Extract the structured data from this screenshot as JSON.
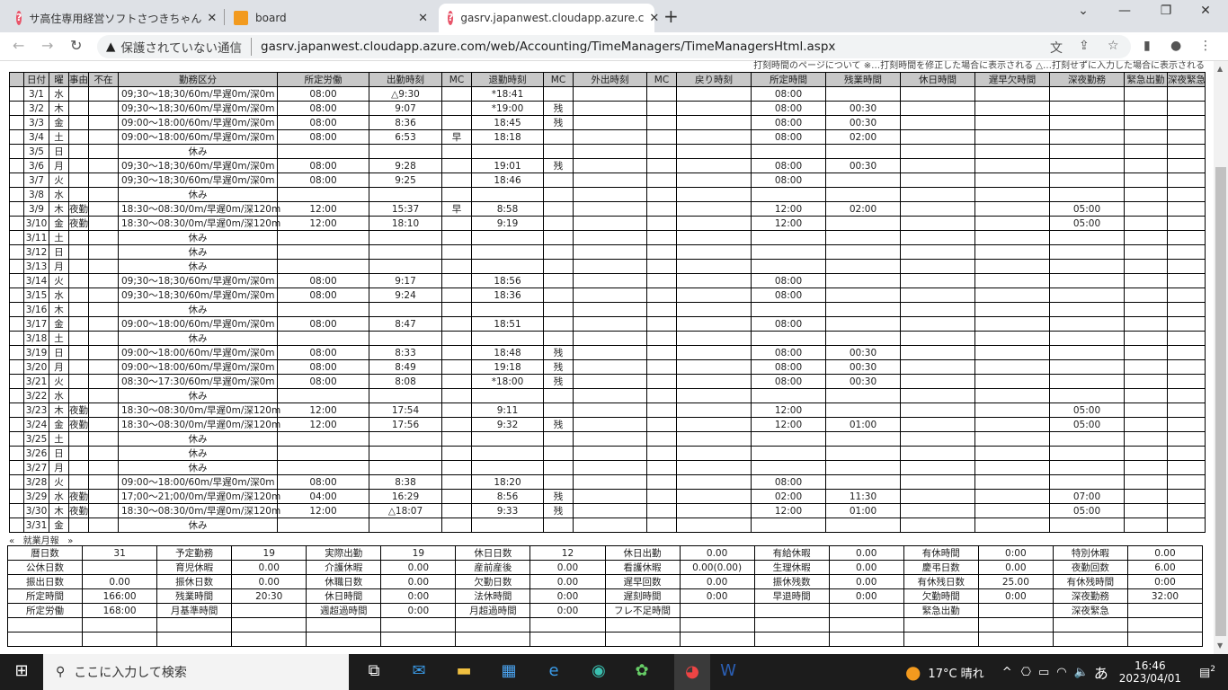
{
  "browser": {
    "tabs": [
      {
        "title": "サ高住専用経営ソフトさつきちゃん",
        "icon": "question-icon"
      },
      {
        "title": "board",
        "icon": "board-icon"
      },
      {
        "title": "gasrv.japanwest.cloudapp.azure.c",
        "icon": "question-icon",
        "active": true
      }
    ],
    "security_label": "保護されていない通信",
    "url": "gasrv.japanwest.cloudapp.azure.com/web/Accounting/TimeManagers/TimeManagersHtml.aspx"
  },
  "page": {
    "note": "打刻時間のページについて ※…打刻時間を修正した場合に表示される △…打刻せずに入力した場合に表示される",
    "headers": [
      "",
      "日付",
      "曜",
      "事由",
      "不在",
      "勤務区分",
      "所定労働",
      "出勤時刻",
      "MC",
      "退勤時刻",
      "MC",
      "外出時刻",
      "MC",
      "戻り時刻",
      "所定時間",
      "残業時間",
      "休日時間",
      "遅早欠時間",
      "深夜勤務",
      "緊急出勤",
      "深夜緊急"
    ],
    "rows": [
      [
        "3/1",
        "水",
        "",
        "",
        "09;30～18;30/60m/早遅0m/深0m",
        "08:00",
        "△9:30",
        "",
        "*18:41",
        "",
        "",
        "",
        "",
        "08:00",
        "",
        "",
        "",
        "",
        "",
        ""
      ],
      [
        "3/2",
        "木",
        "",
        "",
        "09;30～18;30/60m/早遅0m/深0m",
        "08:00",
        "9:07",
        "",
        "*19:00",
        "残",
        "",
        "",
        "",
        "08:00",
        "00:30",
        "",
        "",
        "",
        "",
        ""
      ],
      [
        "3/3",
        "金",
        "",
        "",
        "09:00～18:00/60m/早遅0m/深0m",
        "08:00",
        "8:36",
        "",
        "18:45",
        "残",
        "",
        "",
        "",
        "08:00",
        "00:30",
        "",
        "",
        "",
        "",
        ""
      ],
      [
        "3/4",
        "土",
        "",
        "",
        "09:00～18:00/60m/早遅0m/深0m",
        "08:00",
        "6:53",
        "早",
        "18:18",
        "",
        "",
        "",
        "",
        "08:00",
        "02:00",
        "",
        "",
        "",
        "",
        ""
      ],
      [
        "3/5",
        "日",
        "",
        "",
        "休み",
        "",
        "",
        "",
        "",
        "",
        "",
        "",
        "",
        "",
        "",
        "",
        "",
        "",
        "",
        ""
      ],
      [
        "3/6",
        "月",
        "",
        "",
        "09;30～18;30/60m/早遅0m/深0m",
        "08:00",
        "9:28",
        "",
        "19:01",
        "残",
        "",
        "",
        "",
        "08:00",
        "00:30",
        "",
        "",
        "",
        "",
        ""
      ],
      [
        "3/7",
        "火",
        "",
        "",
        "09;30～18;30/60m/早遅0m/深0m",
        "08:00",
        "9:25",
        "",
        "18:46",
        "",
        "",
        "",
        "",
        "08:00",
        "",
        "",
        "",
        "",
        "",
        ""
      ],
      [
        "3/8",
        "水",
        "",
        "",
        "休み",
        "",
        "",
        "",
        "",
        "",
        "",
        "",
        "",
        "",
        "",
        "",
        "",
        "",
        "",
        ""
      ],
      [
        "3/9",
        "木",
        "夜勤",
        "",
        "18:30～08:30/0m/早遅0m/深120m",
        "12:00",
        "15:37",
        "早",
        "8:58",
        "",
        "",
        "",
        "",
        "12:00",
        "02:00",
        "",
        "",
        "05:00",
        "",
        ""
      ],
      [
        "3/10",
        "金",
        "夜勤",
        "",
        "18:30～08:30/0m/早遅0m/深120m",
        "12:00",
        "18:10",
        "",
        "9:19",
        "",
        "",
        "",
        "",
        "12:00",
        "",
        "",
        "",
        "05:00",
        "",
        ""
      ],
      [
        "3/11",
        "土",
        "",
        "",
        "休み",
        "",
        "",
        "",
        "",
        "",
        "",
        "",
        "",
        "",
        "",
        "",
        "",
        "",
        "",
        ""
      ],
      [
        "3/12",
        "日",
        "",
        "",
        "休み",
        "",
        "",
        "",
        "",
        "",
        "",
        "",
        "",
        "",
        "",
        "",
        "",
        "",
        "",
        ""
      ],
      [
        "3/13",
        "月",
        "",
        "",
        "休み",
        "",
        "",
        "",
        "",
        "",
        "",
        "",
        "",
        "",
        "",
        "",
        "",
        "",
        "",
        ""
      ],
      [
        "3/14",
        "火",
        "",
        "",
        "09;30～18;30/60m/早遅0m/深0m",
        "08:00",
        "9:17",
        "",
        "18:56",
        "",
        "",
        "",
        "",
        "08:00",
        "",
        "",
        "",
        "",
        "",
        ""
      ],
      [
        "3/15",
        "水",
        "",
        "",
        "09;30～18;30/60m/早遅0m/深0m",
        "08:00",
        "9:24",
        "",
        "18:36",
        "",
        "",
        "",
        "",
        "08:00",
        "",
        "",
        "",
        "",
        "",
        ""
      ],
      [
        "3/16",
        "木",
        "",
        "",
        "休み",
        "",
        "",
        "",
        "",
        "",
        "",
        "",
        "",
        "",
        "",
        "",
        "",
        "",
        "",
        ""
      ],
      [
        "3/17",
        "金",
        "",
        "",
        "09:00～18:00/60m/早遅0m/深0m",
        "08:00",
        "8:47",
        "",
        "18:51",
        "",
        "",
        "",
        "",
        "08:00",
        "",
        "",
        "",
        "",
        "",
        ""
      ],
      [
        "3/18",
        "土",
        "",
        "",
        "休み",
        "",
        "",
        "",
        "",
        "",
        "",
        "",
        "",
        "",
        "",
        "",
        "",
        "",
        "",
        ""
      ],
      [
        "3/19",
        "日",
        "",
        "",
        "09:00～18:00/60m/早遅0m/深0m",
        "08:00",
        "8:33",
        "",
        "18:48",
        "残",
        "",
        "",
        "",
        "08:00",
        "00:30",
        "",
        "",
        "",
        "",
        ""
      ],
      [
        "3/20",
        "月",
        "",
        "",
        "09:00～18:00/60m/早遅0m/深0m",
        "08:00",
        "8:49",
        "",
        "19:18",
        "残",
        "",
        "",
        "",
        "08:00",
        "00:30",
        "",
        "",
        "",
        "",
        ""
      ],
      [
        "3/21",
        "火",
        "",
        "",
        "08:30～17:30/60m/早遅0m/深0m",
        "08:00",
        "8:08",
        "",
        "*18:00",
        "残",
        "",
        "",
        "",
        "08:00",
        "00:30",
        "",
        "",
        "",
        "",
        ""
      ],
      [
        "3/22",
        "水",
        "",
        "",
        "休み",
        "",
        "",
        "",
        "",
        "",
        "",
        "",
        "",
        "",
        "",
        "",
        "",
        "",
        "",
        ""
      ],
      [
        "3/23",
        "木",
        "夜勤",
        "",
        "18:30～08:30/0m/早遅0m/深120m",
        "12:00",
        "17:54",
        "",
        "9:11",
        "",
        "",
        "",
        "",
        "12:00",
        "",
        "",
        "",
        "05:00",
        "",
        ""
      ],
      [
        "3/24",
        "金",
        "夜勤",
        "",
        "18:30～08:30/0m/早遅0m/深120m",
        "12:00",
        "17:56",
        "",
        "9:32",
        "残",
        "",
        "",
        "",
        "12:00",
        "01:00",
        "",
        "",
        "05:00",
        "",
        ""
      ],
      [
        "3/25",
        "土",
        "",
        "",
        "休み",
        "",
        "",
        "",
        "",
        "",
        "",
        "",
        "",
        "",
        "",
        "",
        "",
        "",
        "",
        ""
      ],
      [
        "3/26",
        "日",
        "",
        "",
        "休み",
        "",
        "",
        "",
        "",
        "",
        "",
        "",
        "",
        "",
        "",
        "",
        "",
        "",
        "",
        ""
      ],
      [
        "3/27",
        "月",
        "",
        "",
        "休み",
        "",
        "",
        "",
        "",
        "",
        "",
        "",
        "",
        "",
        "",
        "",
        "",
        "",
        "",
        ""
      ],
      [
        "3/28",
        "火",
        "",
        "",
        "09:00～18:00/60m/早遅0m/深0m",
        "08:00",
        "8:38",
        "",
        "18:20",
        "",
        "",
        "",
        "",
        "08:00",
        "",
        "",
        "",
        "",
        "",
        ""
      ],
      [
        "3/29",
        "水",
        "夜勤",
        "",
        "17;00～21;00/0m/早遅0m/深120m",
        "04:00",
        "16:29",
        "",
        "8:56",
        "残",
        "",
        "",
        "",
        "02:00",
        "11:30",
        "",
        "",
        "07:00",
        "",
        ""
      ],
      [
        "3/30",
        "木",
        "夜勤",
        "",
        "18:30～08:30/0m/早遅0m/深120m",
        "12:00",
        "△18:07",
        "",
        "9:33",
        "残",
        "",
        "",
        "",
        "12:00",
        "01:00",
        "",
        "",
        "05:00",
        "",
        ""
      ],
      [
        "3/31",
        "金",
        "",
        "",
        "休み",
        "",
        "",
        "",
        "",
        "",
        "",
        "",
        "",
        "",
        "",
        "",
        "",
        "",
        "",
        ""
      ]
    ],
    "pager": {
      "prev": "«",
      "title": "就業月報",
      "next": "»"
    },
    "summary": [
      [
        "暦日数",
        "31",
        "予定勤務",
        "19",
        "実際出勤",
        "19",
        "休日日数",
        "12",
        "休日出勤",
        "0.00",
        "有給休暇",
        "0.00",
        "有休時間",
        "0:00",
        "特別休暇",
        "0.00"
      ],
      [
        "公休日数",
        "",
        "育児休暇",
        "0.00",
        "介護休暇",
        "0.00",
        "産前産後",
        "0.00",
        "看護休暇",
        "0.00(0.00)",
        "生理休暇",
        "0.00",
        "慶弔日数",
        "0.00",
        "夜勤回数",
        "6.00"
      ],
      [
        "振出日数",
        "0.00",
        "振休日数",
        "0.00",
        "休職日数",
        "0.00",
        "欠勤日数",
        "0.00",
        "遅早回数",
        "0.00",
        "振休残数",
        "0.00",
        "有休残日数",
        "25.00",
        "有休残時間",
        "0:00"
      ],
      [
        "所定時間",
        "166:00",
        "残業時間",
        "20:30",
        "休日時間",
        "0:00",
        "法休時間",
        "0:00",
        "遅刻時間",
        "0:00",
        "早退時間",
        "0:00",
        "欠勤時間",
        "0:00",
        "深夜勤務",
        "32:00"
      ],
      [
        "所定労働",
        "168:00",
        "月基準時間",
        "",
        "週超過時間",
        "0:00",
        "月超過時間",
        "0:00",
        "フレ不足時間",
        "",
        "",
        "",
        "緊急出勤",
        "",
        "深夜緊急",
        ""
      ],
      [
        "",
        "",
        "",
        "",
        "",
        "",
        "",
        "",
        "",
        "",
        "",
        "",
        "",
        "",
        "",
        ""
      ],
      [
        "",
        "",
        "",
        "",
        "",
        "",
        "",
        "",
        "",
        "",
        "",
        "",
        "",
        "",
        "",
        ""
      ]
    ]
  },
  "taskbar": {
    "search_placeholder": "ここに入力して検索",
    "weather": "17°C 晴れ",
    "ime": "あ",
    "time": "16:46",
    "date": "2023/04/01",
    "notifications": "2"
  }
}
